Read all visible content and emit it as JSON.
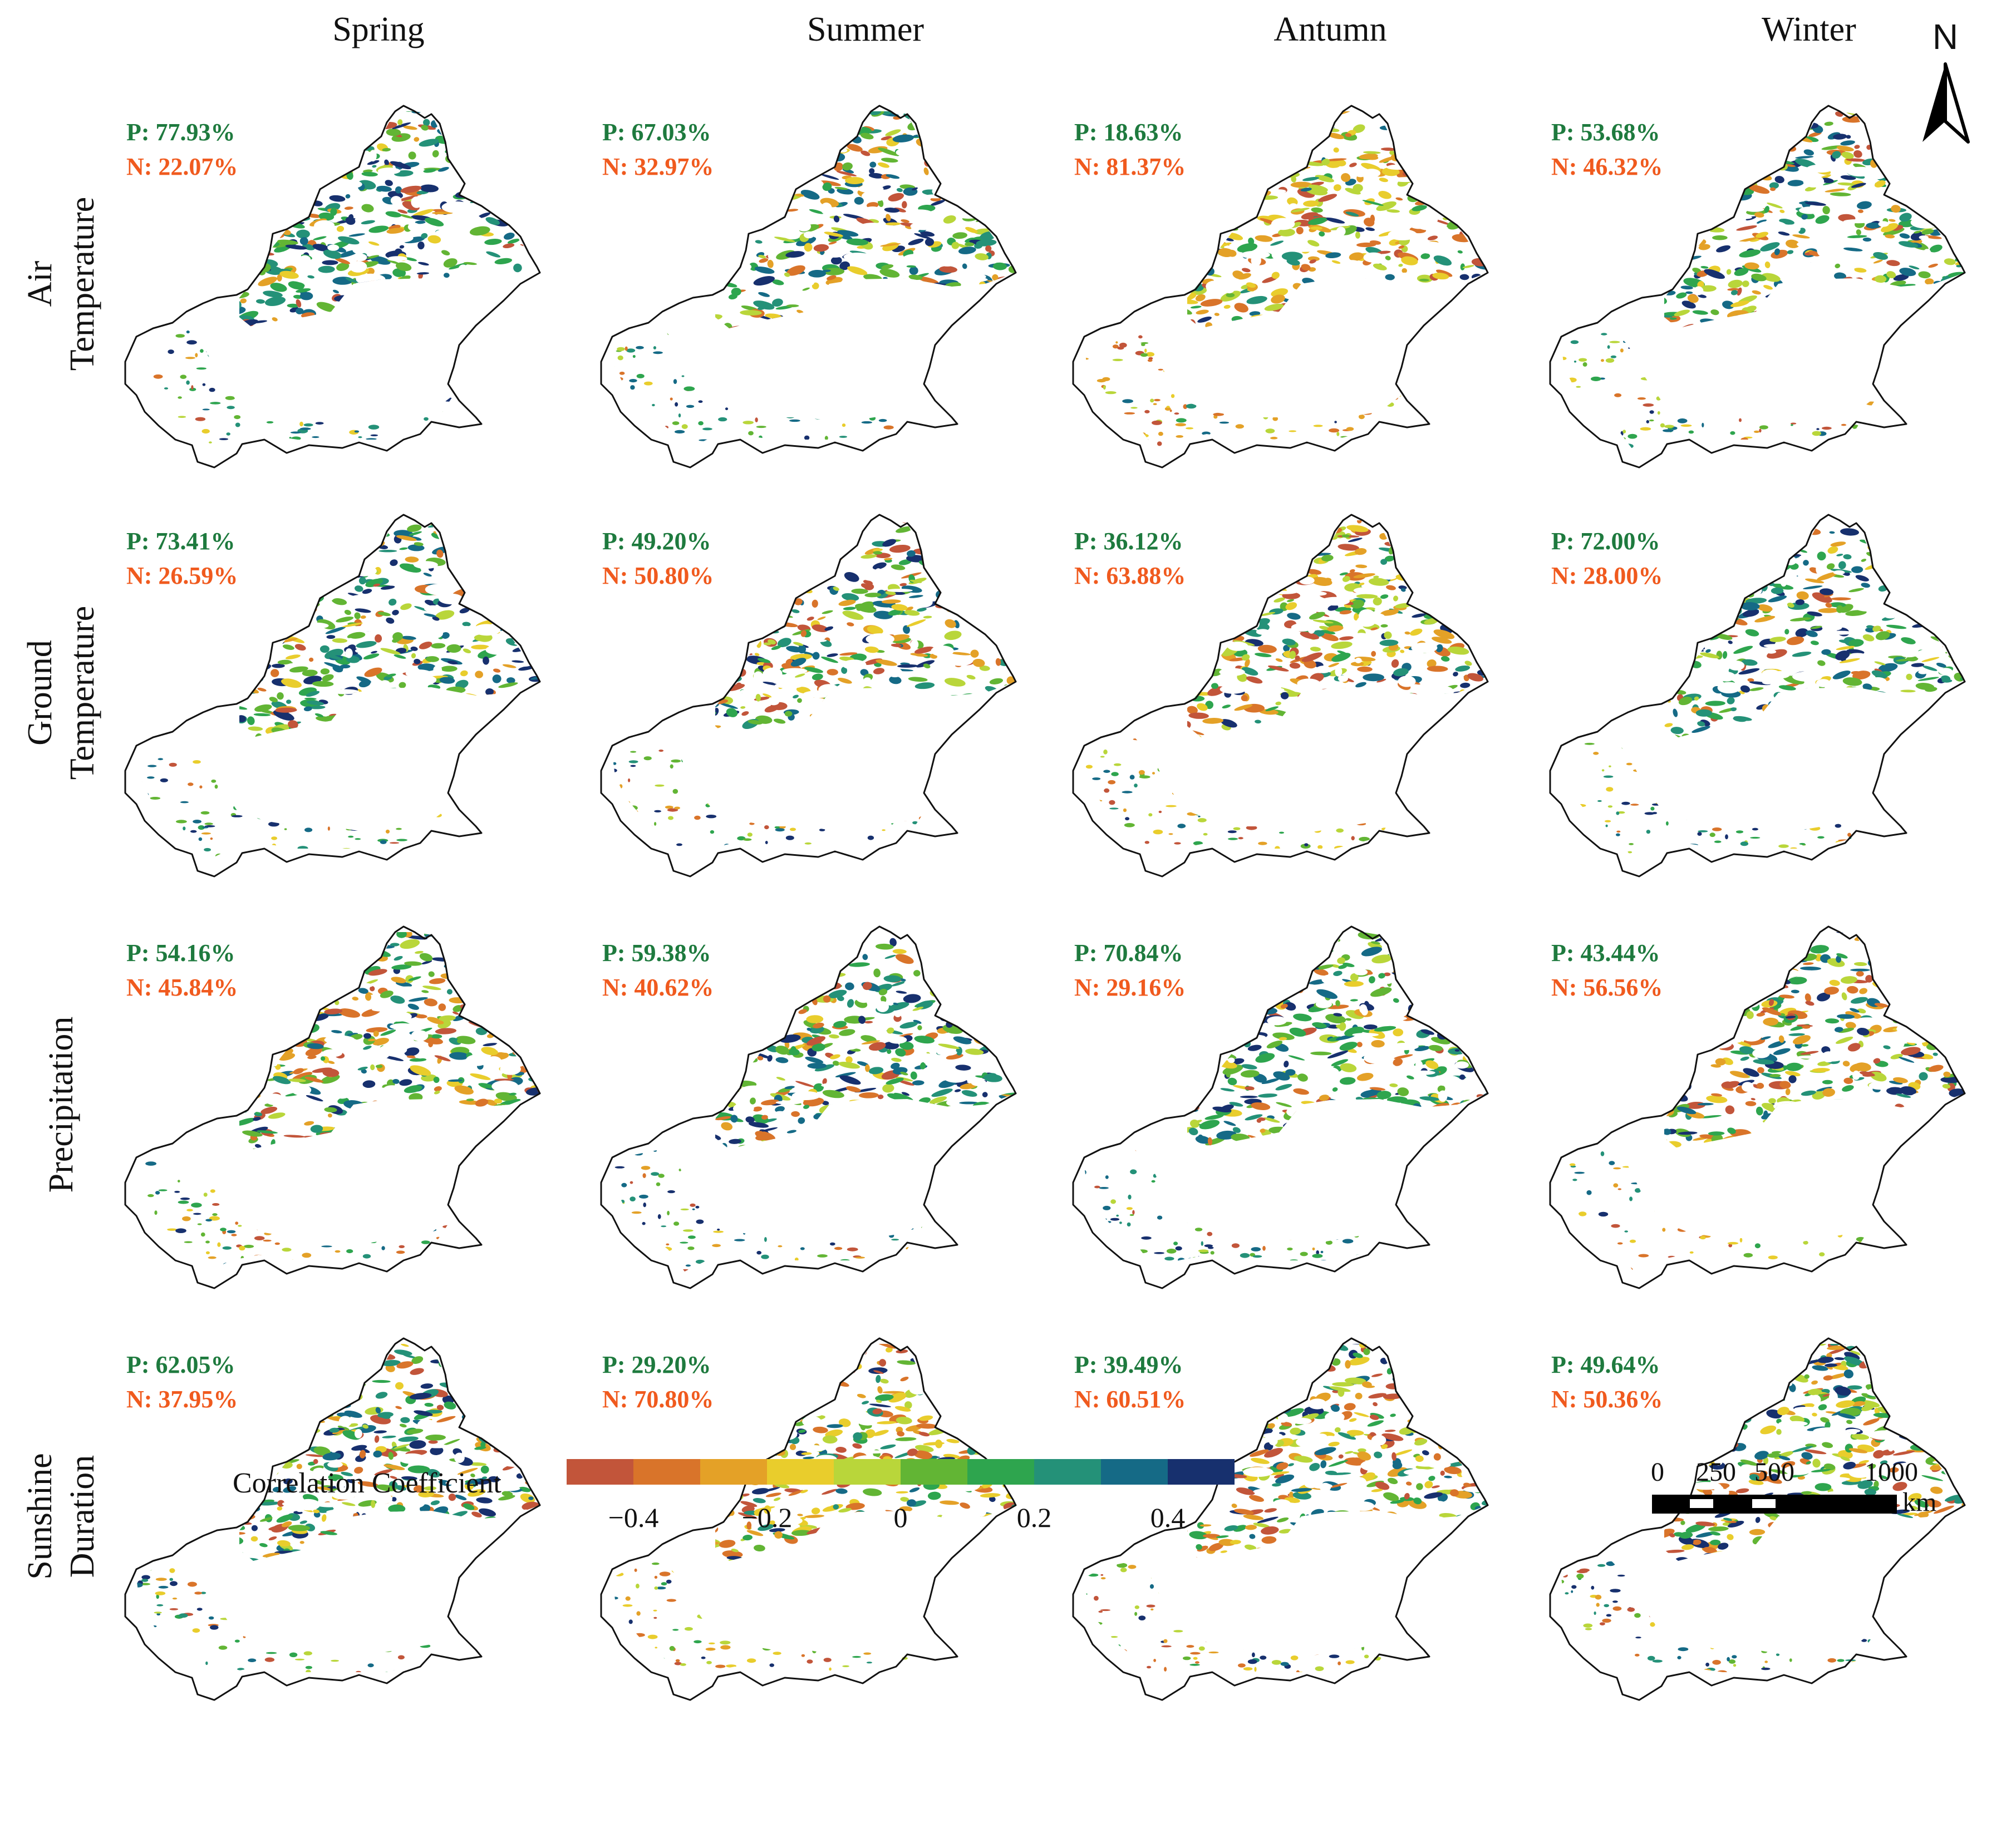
{
  "columns": [
    "Spring",
    "Summer",
    "Antumn",
    "Winter"
  ],
  "rows": [
    {
      "line1": "Air",
      "line2": "Temperature",
      "cells": [
        {
          "p": "P: 77.93%",
          "n": "N: 22.07%"
        },
        {
          "p": "P: 67.03%",
          "n": "N: 32.97%"
        },
        {
          "p": "P: 18.63%",
          "n": "N: 81.37%"
        },
        {
          "p": "P: 53.68%",
          "n": "N: 46.32%"
        }
      ]
    },
    {
      "line1": "Ground",
      "line2": "Temperature",
      "cells": [
        {
          "p": "P: 73.41%",
          "n": "N: 26.59%"
        },
        {
          "p": "P: 49.20%",
          "n": "N: 50.80%"
        },
        {
          "p": "P: 36.12%",
          "n": "N: 63.88%"
        },
        {
          "p": "P: 72.00%",
          "n": "N: 28.00%"
        }
      ]
    },
    {
      "line1": "Precipitation",
      "line2": "",
      "cells": [
        {
          "p": "P: 54.16%",
          "n": "N: 45.84%"
        },
        {
          "p": "P: 59.38%",
          "n": "N: 40.62%"
        },
        {
          "p": "P: 70.84%",
          "n": "N: 29.16%"
        },
        {
          "p": "P: 43.44%",
          "n": "N: 56.56%"
        }
      ]
    },
    {
      "line1": "Sunshine",
      "line2": "Duration",
      "cells": [
        {
          "p": "P: 62.05%",
          "n": "N: 37.95%"
        },
        {
          "p": "P: 29.20%",
          "n": "N: 70.80%"
        },
        {
          "p": "P: 39.49%",
          "n": "N: 60.51%"
        },
        {
          "p": "P: 49.64%",
          "n": "N: 50.36%"
        }
      ]
    }
  ],
  "north_label": "N",
  "legend": {
    "title": "Correlation Coefficient",
    "colors": [
      "#c2553a",
      "#d9742a",
      "#e4a127",
      "#e9cd2c",
      "#b9d63a",
      "#62b534",
      "#2ea54e",
      "#249178",
      "#156a86",
      "#17306e"
    ],
    "ticks": [
      "−0.4",
      "−0.2",
      "0",
      "0.2",
      "0.4"
    ],
    "tick_values": [
      -0.4,
      -0.2,
      0,
      0.2,
      0.4
    ],
    "range": [
      -0.5,
      0.5
    ]
  },
  "scale_bar": {
    "labels": [
      "0",
      "250",
      "500",
      "1000"
    ],
    "values": [
      0,
      250,
      500,
      1000
    ],
    "unit": "km"
  },
  "colors": {
    "positive": "#1e7a3e",
    "negative": "#f05a1e",
    "outline": "#111111"
  }
}
